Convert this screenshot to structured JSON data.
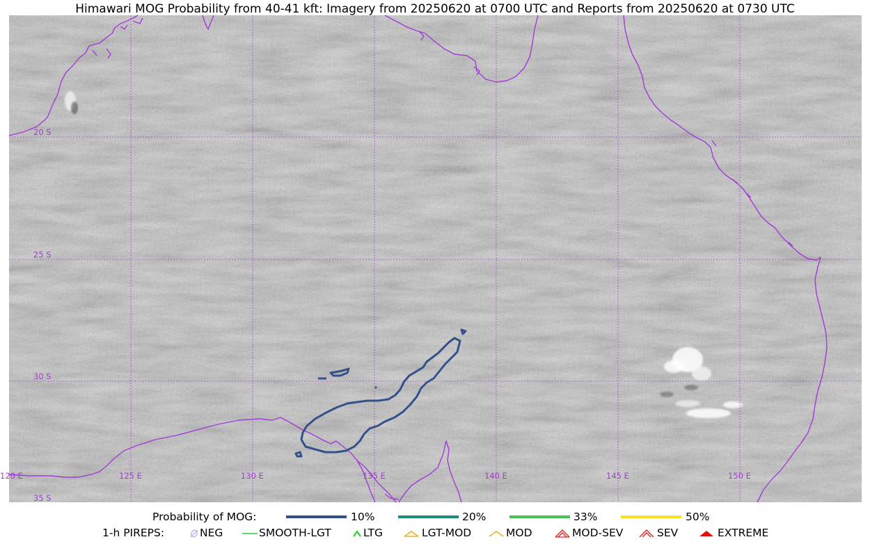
{
  "title": "Himawari MOG Probability from 40-41 kft: Imagery from 20250620 at 0700 UTC and Reports from 20250620 at 0730 UTC",
  "map": {
    "lat_labels": [
      "20 S",
      "25 S",
      "30 S",
      "35 S"
    ],
    "lon_labels": [
      "120 E",
      "125 E",
      "130 E",
      "135 E",
      "140 E",
      "145 E",
      "150 E"
    ],
    "colors": {
      "background": "#b9b9b9",
      "coastline": "#a23ad8",
      "gridline": "#a040d0",
      "contour_10": "#34508a"
    },
    "features": [
      "satellite-imagery",
      "coastline",
      "graticule",
      "probability-contour-10pct",
      "convective-cloud-cluster"
    ]
  },
  "legend": {
    "probability": {
      "label": "Probability of MOG:",
      "items": [
        {
          "label": "10%",
          "color": "#34508a"
        },
        {
          "label": "20%",
          "color": "#1d8a80"
        },
        {
          "label": "33%",
          "color": "#4ec05a"
        },
        {
          "label": "50%",
          "color": "#f8e020"
        }
      ]
    },
    "pireps": {
      "label": "1-h PIREPS:",
      "items": [
        {
          "label": "NEG",
          "icon": "neg-icon",
          "color": "#b9b9f2"
        },
        {
          "label": "SMOOTH-LGT",
          "icon": "smooth-lgt-icon",
          "color": "#33cc33"
        },
        {
          "label": "LTG",
          "icon": "ltg-icon",
          "color": "#22cc22"
        },
        {
          "label": "LGT-MOD",
          "icon": "lgt-mod-icon",
          "color": "#f0b020"
        },
        {
          "label": "MOD",
          "icon": "mod-icon",
          "color": "#f0b020"
        },
        {
          "label": "MOD-SEV",
          "icon": "mod-sev-icon",
          "color": "#e02020"
        },
        {
          "label": "SEV",
          "icon": "sev-icon",
          "color": "#e02020"
        },
        {
          "label": "EXTREME",
          "icon": "extreme-icon",
          "color": "#e01010"
        }
      ]
    }
  }
}
